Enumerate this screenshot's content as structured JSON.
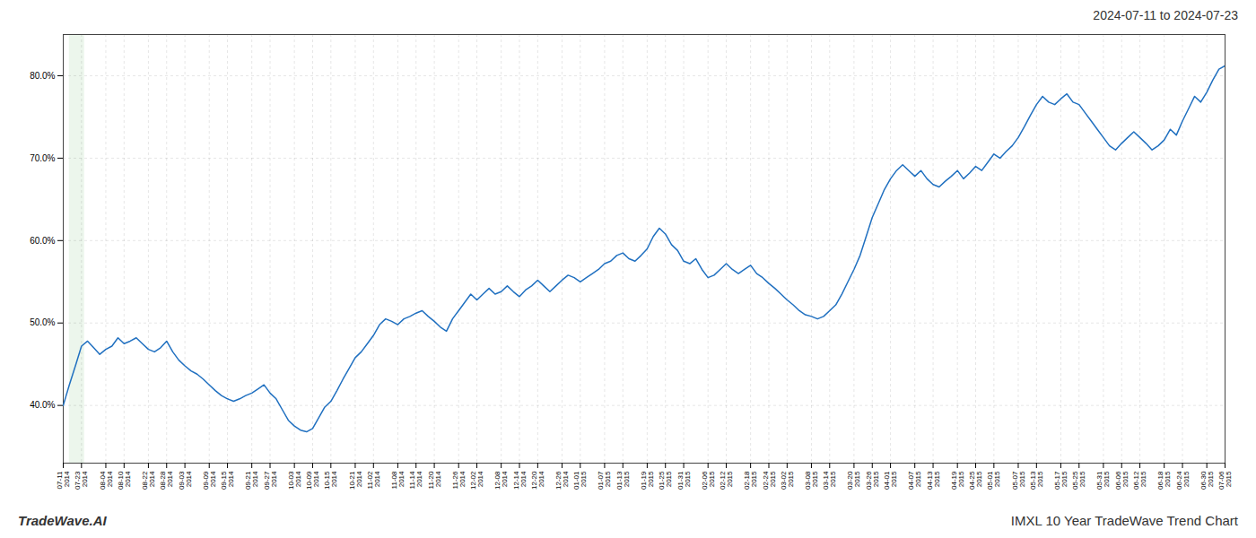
{
  "chart_data": {
    "type": "line",
    "title": "2024-07-11 to 2024-07-23",
    "annotations": [
      "TradeWave.AI",
      "IMXL 10 Year TradeWave Trend Chart"
    ],
    "color": "#2070c0",
    "highlight": {
      "from": 1.0,
      "to": 3.5,
      "color": "#c8e6c9"
    },
    "grid": true,
    "ylim": [
      33,
      85
    ],
    "yticks": [
      {
        "value": 40.0,
        "label": "40.0%"
      },
      {
        "value": 50.0,
        "label": "50.0%"
      },
      {
        "value": 60.0,
        "label": "60.0%"
      },
      {
        "value": 70.0,
        "label": "70.0%"
      },
      {
        "value": 80.0,
        "label": "80.0%"
      }
    ],
    "categories": [
      "07-11\n2014",
      null,
      null,
      "07-23\n2014",
      null,
      null,
      null,
      "08-04\n2014",
      null,
      null,
      "08-10\n2014",
      null,
      null,
      null,
      "08-22\n2014",
      null,
      null,
      "08-28\n2014",
      null,
      null,
      "09-03\n2014",
      null,
      null,
      null,
      "09-09\n2014",
      null,
      null,
      "09-15\n2014",
      null,
      null,
      null,
      "09-21\n2014",
      null,
      null,
      "09-27\n2014",
      null,
      null,
      null,
      "10-03\n2014",
      null,
      null,
      "10-09\n2014",
      null,
      null,
      "10-15\n2014",
      null,
      null,
      null,
      "10-21\n2014",
      null,
      null,
      "11-02\n2014",
      null,
      null,
      null,
      "11-08\n2014",
      null,
      null,
      "11-14\n2014",
      null,
      null,
      "11-20\n2014",
      null,
      null,
      null,
      "11-26\n2014",
      null,
      null,
      "12-02\n2014",
      null,
      null,
      null,
      "12-08\n2014",
      null,
      null,
      "12-14\n2014",
      null,
      null,
      "12-20\n2014",
      null,
      null,
      null,
      "12-26\n2014",
      null,
      null,
      "01-01\n2015",
      null,
      null,
      null,
      "01-07\n2015",
      null,
      null,
      "01-13\n2015",
      null,
      null,
      null,
      "01-19\n2015",
      null,
      null,
      "01-25\n2015",
      null,
      null,
      "01-31\n2015",
      null,
      null,
      null,
      "02-06\n2015",
      null,
      null,
      "02-12\n2015",
      null,
      null,
      null,
      "02-18\n2015",
      null,
      null,
      "02-24\n2015",
      null,
      null,
      "03-02\n2015",
      null,
      null,
      null,
      "03-08\n2015",
      null,
      null,
      "03-14\n2015",
      null,
      null,
      null,
      "03-20\n2015",
      null,
      null,
      "03-26\n2015",
      null,
      null,
      "04-01\n2015",
      null,
      null,
      null,
      "04-07\n2015",
      null,
      null,
      "04-13\n2015",
      null,
      null,
      null,
      "04-19\n2015",
      null,
      null,
      "04-25\n2015",
      null,
      null,
      "05-01\n2015",
      null,
      null,
      null,
      "05-07\n2015",
      null,
      null,
      "05-13\n2015",
      null,
      null,
      null,
      "05-17\n2015",
      null,
      null,
      "05-25\n2015",
      null,
      null,
      null,
      "05-31\n2015",
      null,
      null,
      "06-06\n2015",
      null,
      null,
      "06-12\n2015",
      null,
      null,
      null,
      "06-18\n2015",
      null,
      null,
      "06-24\n2015",
      null,
      null,
      null,
      "06-30\n2015",
      null,
      null,
      "07-06\n2015"
    ],
    "values": [
      40.0,
      42.5,
      44.8,
      47.2,
      47.8,
      47.0,
      46.2,
      46.8,
      47.2,
      48.2,
      47.5,
      47.8,
      48.2,
      47.5,
      46.8,
      46.5,
      47.0,
      47.8,
      46.5,
      45.5,
      44.8,
      44.2,
      43.8,
      43.2,
      42.5,
      41.8,
      41.2,
      40.8,
      40.5,
      40.8,
      41.2,
      41.5,
      42.0,
      42.5,
      41.5,
      40.8,
      39.5,
      38.2,
      37.5,
      37.0,
      36.8,
      37.2,
      38.5,
      39.8,
      40.5,
      41.8,
      43.2,
      44.5,
      45.8,
      46.5,
      47.5,
      48.5,
      49.8,
      50.5,
      50.2,
      49.8,
      50.5,
      50.8,
      51.2,
      51.5,
      50.8,
      50.2,
      49.5,
      49.0,
      50.5,
      51.5,
      52.5,
      53.5,
      52.8,
      53.5,
      54.2,
      53.5,
      53.8,
      54.5,
      53.8,
      53.2,
      54.0,
      54.5,
      55.2,
      54.5,
      53.8,
      54.5,
      55.2,
      55.8,
      55.5,
      55.0,
      55.5,
      56.0,
      56.5,
      57.2,
      57.5,
      58.2,
      58.5,
      57.8,
      57.5,
      58.2,
      59.0,
      60.5,
      61.5,
      60.8,
      59.5,
      58.8,
      57.5,
      57.2,
      57.8,
      56.5,
      55.5,
      55.8,
      56.5,
      57.2,
      56.5,
      56.0,
      56.5,
      57.0,
      56.0,
      55.5,
      54.8,
      54.2,
      53.5,
      52.8,
      52.2,
      51.5,
      51.0,
      50.8,
      50.5,
      50.8,
      51.5,
      52.2,
      53.5,
      55.0,
      56.5,
      58.2,
      60.5,
      62.8,
      64.5,
      66.2,
      67.5,
      68.5,
      69.2,
      68.5,
      67.8,
      68.5,
      67.5,
      66.8,
      66.5,
      67.2,
      67.8,
      68.5,
      67.5,
      68.2,
      69.0,
      68.5,
      69.5,
      70.5,
      70.0,
      70.8,
      71.5,
      72.5,
      73.8,
      75.2,
      76.5,
      77.5,
      76.8,
      76.5,
      77.2,
      77.8,
      76.8,
      76.5,
      75.5,
      74.5,
      73.5,
      72.5,
      71.5,
      71.0,
      71.8,
      72.5,
      73.2,
      72.5,
      71.8,
      71.0,
      71.5,
      72.2,
      73.5,
      72.8,
      74.5,
      76.0,
      77.5,
      76.8,
      78.0,
      79.5,
      80.8,
      81.2
    ]
  }
}
